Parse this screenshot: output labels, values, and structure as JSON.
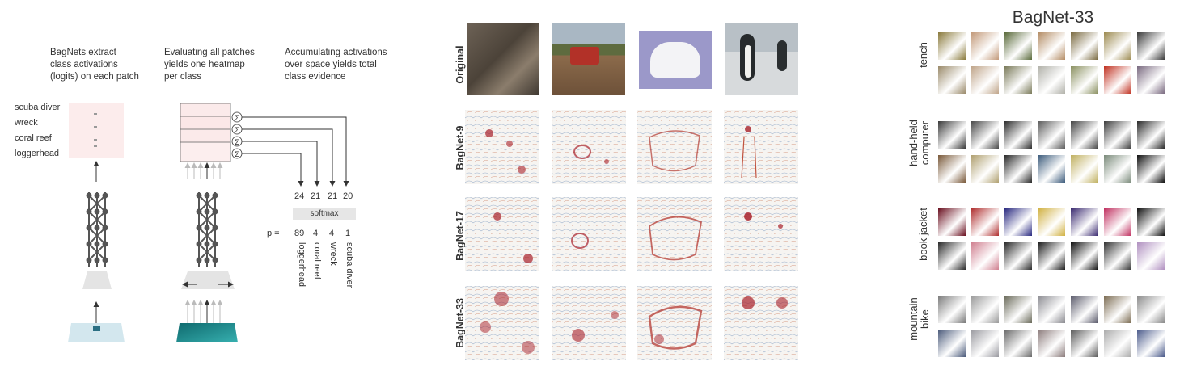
{
  "panel_a": {
    "captions": [
      [
        "BagNets extract",
        "class activations",
        "(logits) on each patch"
      ],
      [
        "Evaluating all patches",
        "yields one heatmap",
        "per class"
      ],
      [
        "Accumulating activations",
        "over space yields total",
        "class evidence"
      ]
    ],
    "classes": [
      "scuba diver",
      "wreck",
      "coral reef",
      "loggerhead"
    ],
    "sum_symbol": "Σ",
    "logits": [
      "24",
      "21",
      "21",
      "20"
    ],
    "softmax_label": "softmax",
    "p_label": "p =",
    "probs": [
      "89",
      "4",
      "4",
      "1"
    ],
    "prob_labels": [
      "loggerhead",
      "coral reef",
      "wreck",
      "scuba diver"
    ]
  },
  "panel_b": {
    "row_labels": [
      "Original",
      "BagNet-9",
      "BagNet-17",
      "BagNet-33"
    ]
  },
  "panel_c": {
    "title": "BagNet-33",
    "categories": [
      "tench",
      "hand-held\ncomputer",
      "book jacket",
      "mountain\nbike"
    ]
  },
  "colors": {
    "heat_red": "#a8202a",
    "edge_blue": "#8fa7c9",
    "network_gray": "#555555"
  }
}
